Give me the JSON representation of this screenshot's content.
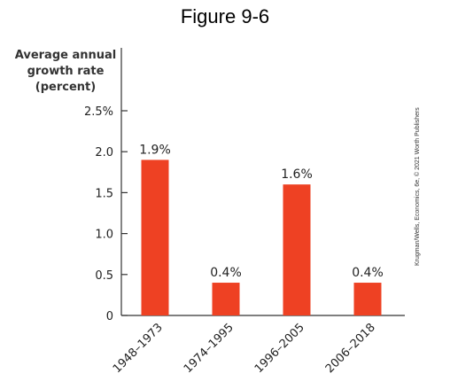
{
  "figure_title": "Figure 9-6",
  "credit": "Krugman/Wells, Economics, 6e, © 2021 Worth Publishers",
  "chart_data": {
    "type": "bar",
    "title": "Figure 9-6",
    "ylabel": "Average annual growth rate (percent)",
    "ylabel_lines": [
      "Average annual",
      "growth rate",
      "(percent)"
    ],
    "xlabel": "",
    "categories": [
      "1948–1973",
      "1974–1995",
      "1996–2005",
      "2006–2018"
    ],
    "values": [
      1.9,
      0.4,
      1.6,
      0.4
    ],
    "data_labels": [
      "1.9%",
      "0.4%",
      "1.6%",
      "0.4%"
    ],
    "yticks": [
      0,
      0.5,
      1.0,
      1.5,
      2.0,
      2.5
    ],
    "ytick_labels": [
      "0",
      "0.5",
      "1.0",
      "1.5",
      "2.0",
      "2.5%"
    ],
    "ylim": [
      0,
      2.5
    ],
    "grid": false,
    "bar_color": "#ee4123",
    "axis_color": "#333333"
  }
}
